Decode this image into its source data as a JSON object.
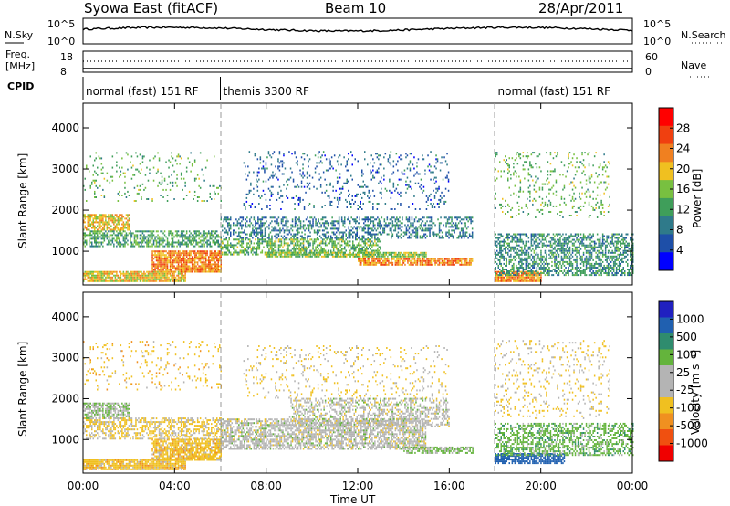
{
  "header": {
    "title": "Syowa East (fitACF)",
    "beam": "Beam 10",
    "date": "28/Apr/2011"
  },
  "panels": {
    "nsky": {
      "label": "N.Sky",
      "top_tick": "10^5",
      "bottom_tick": "10^0"
    },
    "nsearch": {
      "label": "N.Search",
      "top_tick": "10^5",
      "bottom_tick": "10^0"
    },
    "freq": {
      "label_line1": "Freq.",
      "label_line2": "[MHz]",
      "top_tick": "18",
      "bottom_tick": "8"
    },
    "nave": {
      "label": "Nave",
      "top_tick": "60",
      "bottom_tick": "0"
    },
    "cpid": {
      "label": "CPID",
      "segments": [
        {
          "label": "normal (fast) 151 RF",
          "start_h": 0,
          "end_h": 6
        },
        {
          "label": "themis 3300 RF",
          "start_h": 6,
          "end_h": 18
        },
        {
          "label": "normal (fast) 151 RF",
          "start_h": 18,
          "end_h": 24
        }
      ]
    }
  },
  "axes": {
    "ylabel": "Slant Range [km]",
    "xlabel": "Time UT",
    "yticks": [
      "1000",
      "2000",
      "3000",
      "4000"
    ],
    "xticks": [
      "00:00",
      "04:00",
      "08:00",
      "12:00",
      "16:00",
      "20:00",
      "00:00"
    ]
  },
  "power_colorbar": {
    "label": "Power [dB]",
    "ticks": [
      "4",
      "8",
      "12",
      "16",
      "20",
      "24",
      "28"
    ],
    "colors": [
      "#0000ff",
      "#1e4fa8",
      "#2f7a8a",
      "#3f9e5a",
      "#78c040",
      "#f0c020",
      "#f08020",
      "#f04010",
      "#ff0000"
    ]
  },
  "velocity_colorbar": {
    "label": "Velocity [m s⁻¹]",
    "ticks": [
      "1000",
      "500",
      "100",
      "25",
      "-25",
      "-100",
      "-500",
      "-1000"
    ],
    "colors": [
      "#2020c0",
      "#2060b0",
      "#2f8c6e",
      "#64b43c",
      "#b4b4b4",
      "#b4b4b4",
      "#f0c020",
      "#f09020",
      "#f05010",
      "#f00000"
    ]
  },
  "chart_data": [
    {
      "type": "heatmap",
      "title": "Power",
      "x_range_h": [
        0,
        24
      ],
      "y_range_km": [
        180,
        4600
      ],
      "bands": [
        {
          "t": [
            0,
            4.5
          ],
          "r": [
            250,
            520
          ],
          "dB": 20,
          "density": 0.9
        },
        {
          "t": [
            3,
            6
          ],
          "r": [
            480,
            1000
          ],
          "dB": 24,
          "density": 0.85
        },
        {
          "t": [
            0,
            2
          ],
          "r": [
            1500,
            1900
          ],
          "dB": 20,
          "density": 0.7
        },
        {
          "t": [
            0,
            6
          ],
          "r": [
            1100,
            1500
          ],
          "dB": 12,
          "density": 0.6
        },
        {
          "t": [
            6,
            13
          ],
          "r": [
            900,
            1300
          ],
          "dB": 14,
          "density": 0.55
        },
        {
          "t": [
            8,
            15
          ],
          "r": [
            850,
            950
          ],
          "dB": 16,
          "density": 0.8
        },
        {
          "t": [
            6,
            17
          ],
          "r": [
            1300,
            1800
          ],
          "dB": 8,
          "density": 0.45
        },
        {
          "t": [
            7,
            16
          ],
          "r": [
            2000,
            3400
          ],
          "dB": 6,
          "density": 0.12
        },
        {
          "t": [
            12,
            17
          ],
          "r": [
            650,
            800
          ],
          "dB": 24,
          "density": 0.8
        },
        {
          "t": [
            18,
            20
          ],
          "r": [
            250,
            520
          ],
          "dB": 24,
          "density": 0.9
        },
        {
          "t": [
            18,
            24
          ],
          "r": [
            400,
            1400
          ],
          "dB": 10,
          "density": 0.55
        },
        {
          "t": [
            0,
            6
          ],
          "r": [
            2200,
            3400
          ],
          "dB": 14,
          "density": 0.08
        },
        {
          "t": [
            18,
            23
          ],
          "r": [
            1800,
            3400
          ],
          "dB": 14,
          "density": 0.12
        }
      ]
    },
    {
      "type": "heatmap",
      "title": "Velocity",
      "x_range_h": [
        0,
        24
      ],
      "y_range_km": [
        180,
        4600
      ],
      "bands": [
        {
          "t": [
            0,
            4.5
          ],
          "r": [
            250,
            520
          ],
          "v": -120,
          "density": 0.9
        },
        {
          "t": [
            3,
            6
          ],
          "r": [
            480,
            1000
          ],
          "v": -120,
          "density": 0.8
        },
        {
          "t": [
            0,
            2
          ],
          "r": [
            1500,
            1900
          ],
          "v": 60,
          "density": 0.7
        },
        {
          "t": [
            0,
            6
          ],
          "r": [
            1000,
            1500
          ],
          "v": -80,
          "density": 0.5
        },
        {
          "t": [
            6,
            15
          ],
          "r": [
            750,
            1500
          ],
          "v": 0,
          "density": 0.65
        },
        {
          "t": [
            9,
            16
          ],
          "r": [
            1300,
            2000
          ],
          "v": 0,
          "density": 0.45
        },
        {
          "t": [
            7,
            16
          ],
          "r": [
            2000,
            3300
          ],
          "v": -80,
          "density": 0.1
        },
        {
          "t": [
            14,
            17
          ],
          "r": [
            650,
            800
          ],
          "v": 80,
          "density": 0.7
        },
        {
          "t": [
            18,
            21
          ],
          "r": [
            400,
            650
          ],
          "v": 500,
          "density": 0.75
        },
        {
          "t": [
            18,
            24
          ],
          "r": [
            600,
            1400
          ],
          "v": 120,
          "density": 0.5
        },
        {
          "t": [
            18,
            23
          ],
          "r": [
            1500,
            3400
          ],
          "v": -80,
          "density": 0.12
        },
        {
          "t": [
            0,
            6
          ],
          "r": [
            2200,
            3400
          ],
          "v": -120,
          "density": 0.08
        }
      ]
    }
  ]
}
